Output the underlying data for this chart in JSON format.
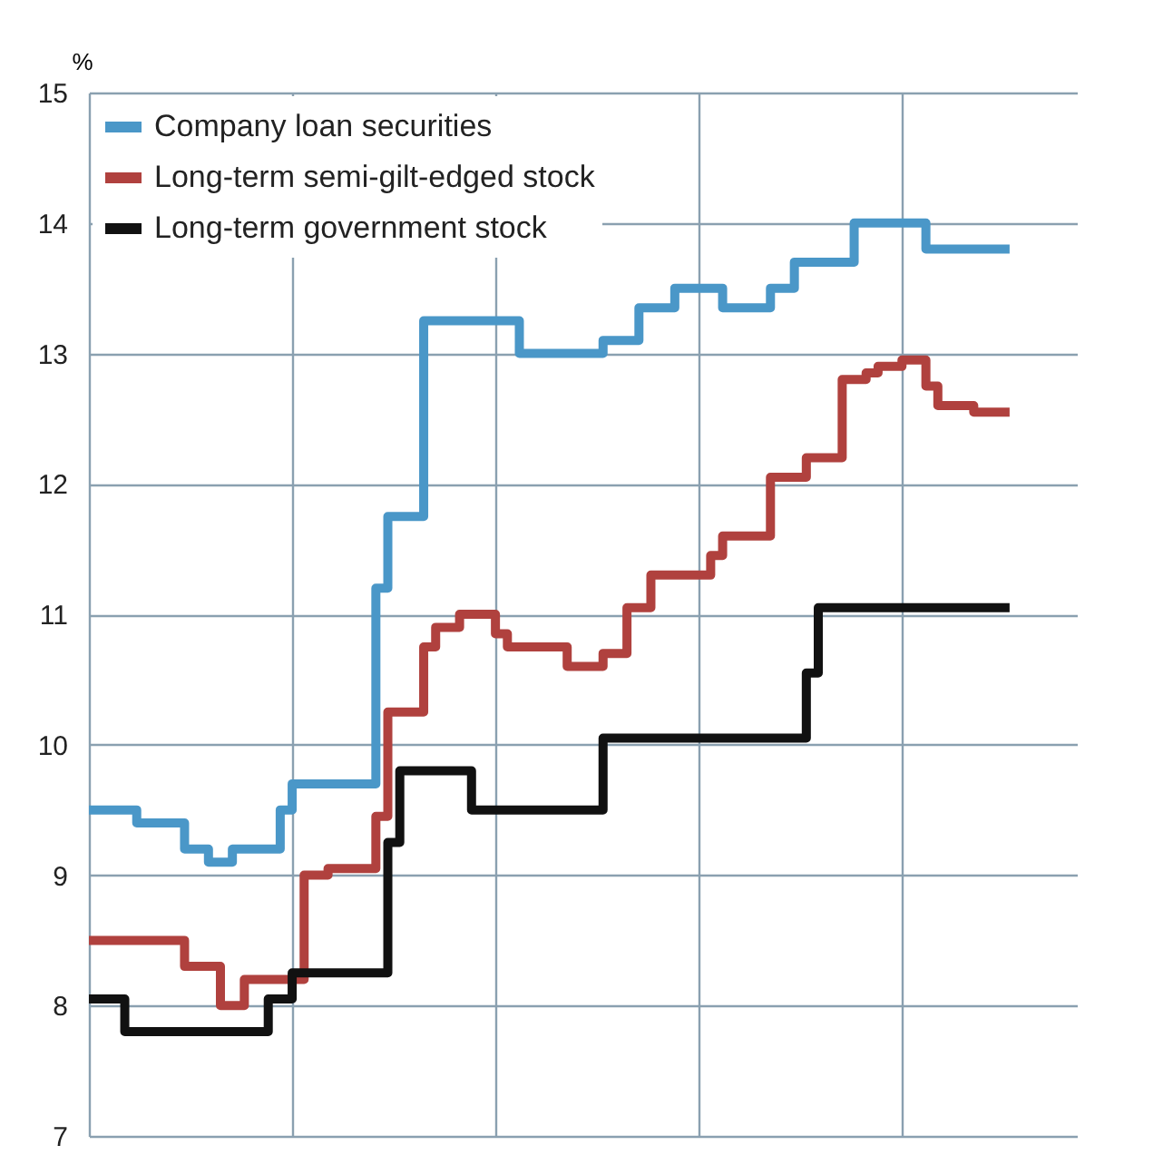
{
  "chart_data": {
    "type": "step",
    "ylabel": "%",
    "categories": [
      null,
      null,
      null,
      null,
      null,
      null,
      null,
      null,
      null,
      null,
      null,
      null,
      null,
      null,
      null,
      null,
      null,
      null,
      null,
      null,
      null,
      null,
      null,
      null,
      null,
      null,
      null,
      null,
      null,
      null,
      null,
      null,
      null,
      null,
      null,
      null,
      null,
      null,
      null,
      null,
      null,
      null,
      null,
      null,
      null,
      null,
      null,
      null,
      null,
      null,
      null,
      null,
      null,
      null,
      null,
      null,
      null,
      null,
      null,
      null,
      null,
      null,
      null,
      null,
      null,
      null,
      null,
      null,
      null,
      null,
      null,
      null,
      null,
      null,
      null,
      null,
      null,
      null
    ],
    "ylim": [
      7,
      15
    ],
    "yticks": [
      7,
      8,
      9,
      10,
      11,
      12,
      13,
      14,
      15
    ],
    "tick_labels": "y",
    "grid": true,
    "legend": "top left",
    "marker": "none",
    "line_style": "solid",
    "series": [
      {
        "name": "Company loan securities",
        "color": "#4a97c8",
        "values": [
          9.5,
          9.5,
          9.5,
          9.5,
          9.4,
          9.4,
          9.4,
          9.4,
          9.2,
          9.2,
          9.1,
          9.1,
          9.2,
          9.2,
          9.2,
          9.2,
          9.5,
          9.7,
          9.7,
          9.7,
          9.7,
          9.7,
          9.7,
          9.7,
          11.2,
          11.75,
          11.75,
          11.75,
          13.25,
          13.25,
          13.25,
          13.25,
          13.25,
          13.25,
          13.25,
          13.25,
          13.0,
          13.0,
          13.0,
          13.0,
          13.0,
          13.0,
          13.0,
          13.1,
          13.1,
          13.1,
          13.35,
          13.35,
          13.35,
          13.5,
          13.5,
          13.5,
          13.5,
          13.35,
          13.35,
          13.35,
          13.35,
          13.5,
          13.5,
          13.7,
          13.7,
          13.7,
          13.7,
          13.7,
          14.0,
          14.0,
          14.0,
          14.0,
          14.0,
          14.0,
          13.8,
          13.8,
          13.8,
          13.8,
          13.8,
          13.8,
          13.8,
          13.8
        ]
      },
      {
        "name": "Long-term semi-gilt-edged stock",
        "color": "#b0413e",
        "values": [
          8.5,
          8.5,
          8.5,
          8.5,
          8.5,
          8.5,
          8.5,
          8.5,
          8.3,
          8.3,
          8.3,
          8.0,
          8.0,
          8.2,
          8.2,
          8.2,
          8.2,
          8.2,
          9.0,
          9.0,
          9.05,
          9.05,
          9.05,
          9.05,
          9.45,
          10.25,
          10.25,
          10.25,
          10.75,
          10.9,
          10.9,
          11.0,
          11.0,
          11.0,
          10.85,
          10.75,
          10.75,
          10.75,
          10.75,
          10.75,
          10.6,
          10.6,
          10.6,
          10.7,
          10.7,
          11.05,
          11.05,
          11.3,
          11.3,
          11.3,
          11.3,
          11.3,
          11.45,
          11.6,
          11.6,
          11.6,
          11.6,
          12.05,
          12.05,
          12.05,
          12.2,
          12.2,
          12.2,
          12.8,
          12.8,
          12.85,
          12.9,
          12.9,
          12.95,
          12.95,
          12.75,
          12.6,
          12.6,
          12.6,
          12.55,
          12.55,
          12.55,
          12.55
        ]
      },
      {
        "name": "Long-term government stock",
        "color": "#111111",
        "values": [
          8.05,
          8.05,
          8.05,
          7.8,
          7.8,
          7.8,
          7.8,
          7.8,
          7.8,
          7.8,
          7.8,
          7.8,
          7.8,
          7.8,
          7.8,
          8.05,
          8.05,
          8.25,
          8.25,
          8.25,
          8.25,
          8.25,
          8.25,
          8.25,
          8.25,
          9.25,
          9.8,
          9.8,
          9.8,
          9.8,
          9.8,
          9.8,
          9.5,
          9.5,
          9.5,
          9.5,
          9.5,
          9.5,
          9.5,
          9.5,
          9.5,
          9.5,
          9.5,
          10.05,
          10.05,
          10.05,
          10.05,
          10.05,
          10.05,
          10.05,
          10.05,
          10.05,
          10.05,
          10.05,
          10.05,
          10.05,
          10.05,
          10.05,
          10.05,
          10.05,
          10.55,
          11.05,
          11.05,
          11.05,
          11.05,
          11.05,
          11.05,
          11.05,
          11.05,
          11.05,
          11.05,
          11.05,
          11.05,
          11.05,
          11.05,
          11.05,
          11.05,
          11.05
        ]
      }
    ]
  }
}
